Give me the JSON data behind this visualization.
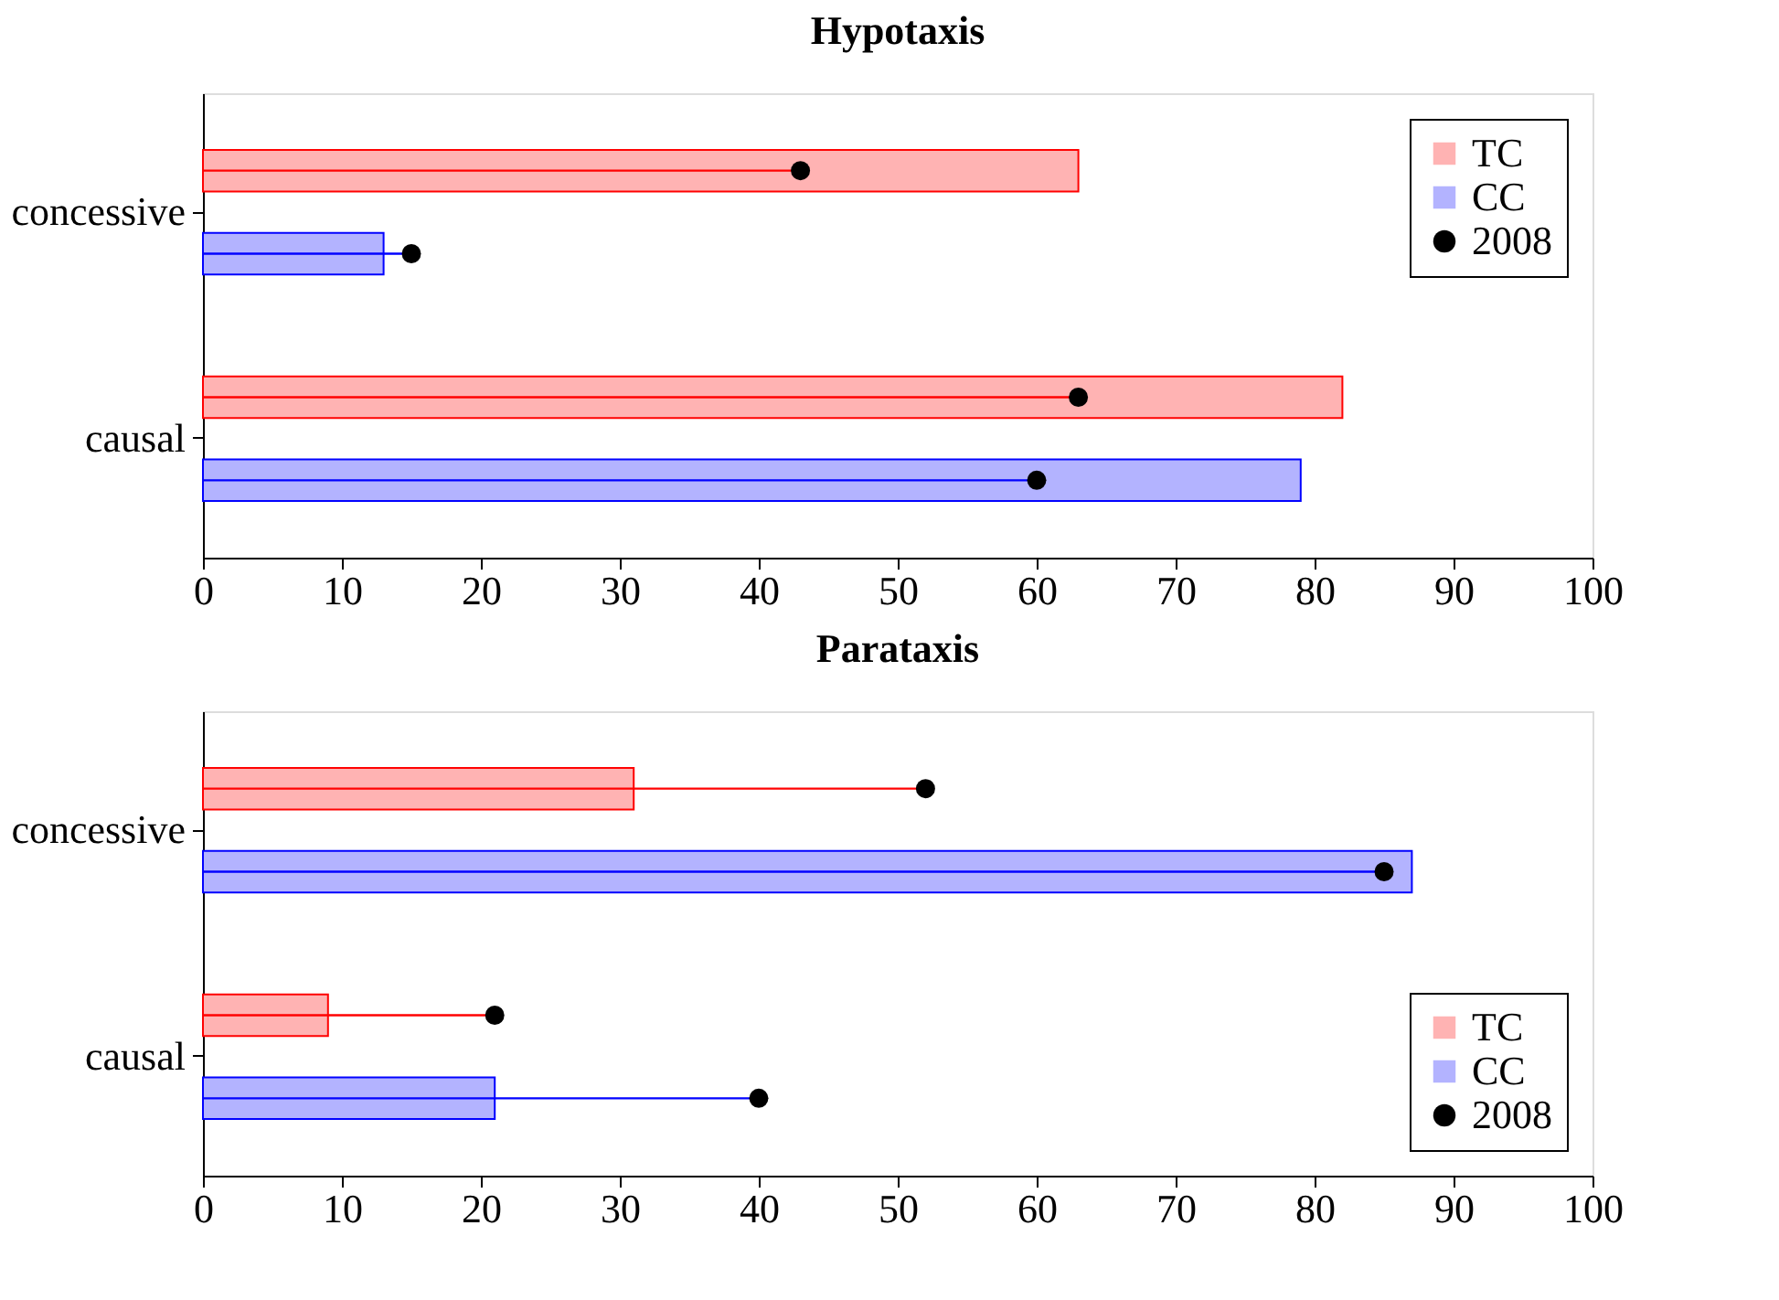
{
  "chart_data": [
    {
      "type": "bar",
      "title": "Hypotaxis",
      "orientation": "horizontal",
      "categories": [
        "concessive",
        "causal"
      ],
      "xlim": [
        0,
        100
      ],
      "xticks": [
        0,
        10,
        20,
        30,
        40,
        50,
        60,
        70,
        80,
        90,
        100
      ],
      "grid": false,
      "legend": "top right",
      "marker": "circle",
      "series": [
        {
          "name": "TC",
          "color": "#ffb3b3",
          "values": [
            63,
            82
          ]
        },
        {
          "name": "CC",
          "color": "#b3b3ff",
          "values": [
            13,
            79
          ]
        },
        {
          "type": "lollipop",
          "name": "2008",
          "color": "#000000",
          "values": [
            43,
            63
          ]
        },
        {
          "type": "lollipop",
          "color": "#000000",
          "values": [
            15,
            60
          ]
        }
      ]
    },
    {
      "type": "bar",
      "title": "Parataxis",
      "orientation": "horizontal",
      "categories": [
        "concessive",
        "causal"
      ],
      "xlim": [
        0,
        100
      ],
      "xticks": [
        0,
        10,
        20,
        30,
        40,
        50,
        60,
        70,
        80,
        90,
        100
      ],
      "grid": false,
      "legend": "bottom right",
      "marker": "circle",
      "series": [
        {
          "name": "TC",
          "color": "#ffb3b3",
          "values": [
            31,
            9
          ]
        },
        {
          "name": "CC",
          "color": "#b3b3ff",
          "values": [
            87,
            21
          ]
        },
        {
          "type": "lollipop",
          "name": "2008",
          "color": "#000000",
          "values": [
            52,
            21
          ]
        },
        {
          "type": "lollipop",
          "color": "#000000",
          "values": [
            85,
            40
          ]
        }
      ]
    }
  ]
}
